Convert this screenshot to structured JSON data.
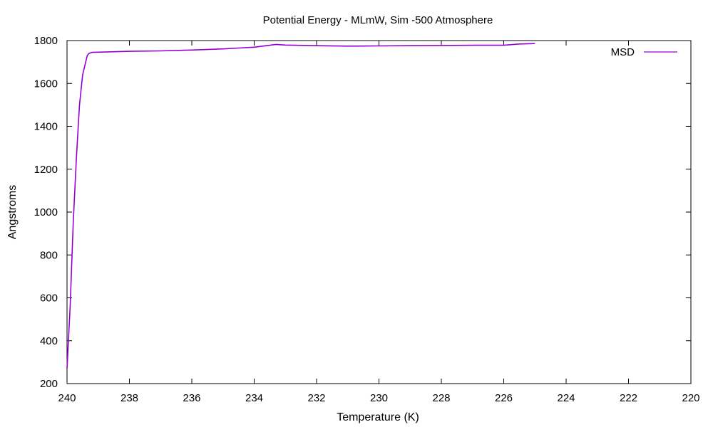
{
  "chart_data": {
    "type": "line",
    "title": "Potential Energy - MLmW, Sim -500 Atmosphere",
    "xlabel": "Temperature (K)",
    "ylabel": "Angstroms",
    "xlim": [
      240,
      220
    ],
    "ylim": [
      200,
      1800
    ],
    "x_reversed": true,
    "xticks": [
      240,
      238,
      236,
      234,
      232,
      230,
      228,
      226,
      224,
      222,
      220
    ],
    "yticks": [
      200,
      400,
      600,
      800,
      1000,
      1200,
      1400,
      1600,
      1800
    ],
    "grid": false,
    "legend_position": "top-right",
    "series": [
      {
        "name": "MSD",
        "color": "#9400d3",
        "x": [
          240.0,
          239.9,
          239.8,
          239.7,
          239.6,
          239.5,
          239.4,
          239.35,
          239.3,
          239.2,
          239.0,
          238.5,
          238.0,
          237.0,
          236.0,
          235.0,
          234.5,
          234.0,
          233.5,
          233.3,
          233.0,
          232.0,
          231.0,
          230.0,
          229.0,
          228.0,
          227.0,
          226.0,
          225.5,
          225.0
        ],
        "y": [
          270,
          560,
          950,
          1250,
          1500,
          1640,
          1700,
          1730,
          1740,
          1745,
          1746,
          1748,
          1750,
          1752,
          1756,
          1761,
          1765,
          1769,
          1778,
          1782,
          1779,
          1776,
          1774,
          1775,
          1776,
          1777,
          1778,
          1778,
          1784,
          1786
        ]
      }
    ]
  }
}
